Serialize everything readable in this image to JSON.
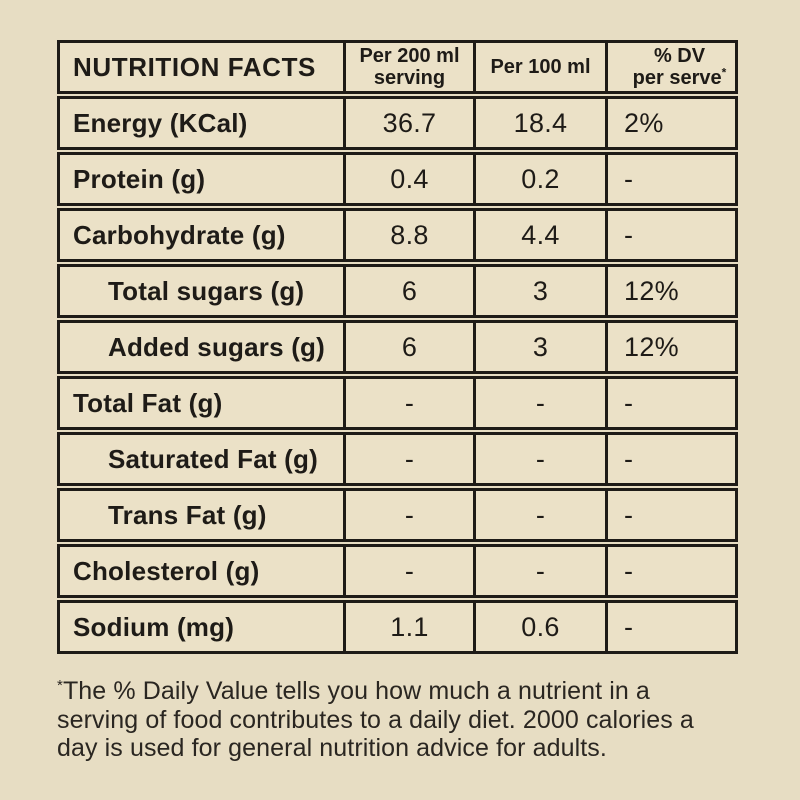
{
  "colors": {
    "page_background": "#e7ddc3",
    "cell_background": "#ebe1c7",
    "border": "#1e1b17",
    "text": "#1e1b17"
  },
  "table": {
    "header": {
      "title": "NUTRITION FACTS",
      "col2_line1": "Per 200 ml",
      "col2_line2": "serving",
      "col3": "Per 100 ml",
      "col4_line1": "% DV",
      "col4_line2": "per serve",
      "col4_marker": "*"
    },
    "rows": [
      {
        "label": "Energy (KCal)",
        "per200": "36.7",
        "per100": "18.4",
        "dv": "2%"
      },
      {
        "label": "Protein (g)",
        "per200": "0.4",
        "per100": "0.2",
        "dv": "-"
      },
      {
        "label": "Carbohydrate (g)",
        "per200": "8.8",
        "per100": "4.4",
        "dv": "-"
      },
      {
        "label": "Total sugars (g)",
        "per200": "6",
        "per100": "3",
        "dv": "12%"
      },
      {
        "label": "Added sugars (g)",
        "per200": "6",
        "per100": "3",
        "dv": "12%"
      },
      {
        "label": "Total Fat (g)",
        "per200": "-",
        "per100": "-",
        "dv": "-"
      },
      {
        "label": "Saturated Fat (g)",
        "per200": "-",
        "per100": "-",
        "dv": "-"
      },
      {
        "label": "Trans Fat (g)",
        "per200": "-",
        "per100": "-",
        "dv": "-"
      },
      {
        "label": "Cholesterol (g)",
        "per200": "-",
        "per100": "-",
        "dv": "-"
      },
      {
        "label": "Sodium (mg)",
        "per200": "1.1",
        "per100": "0.6",
        "dv": "-"
      }
    ]
  },
  "footnote": {
    "marker": "*",
    "text": "The % Daily Value tells you how much a nutrient in a serving of food contributes to a daily diet. 2000 calories a day is used for general nutrition advice for adults."
  }
}
